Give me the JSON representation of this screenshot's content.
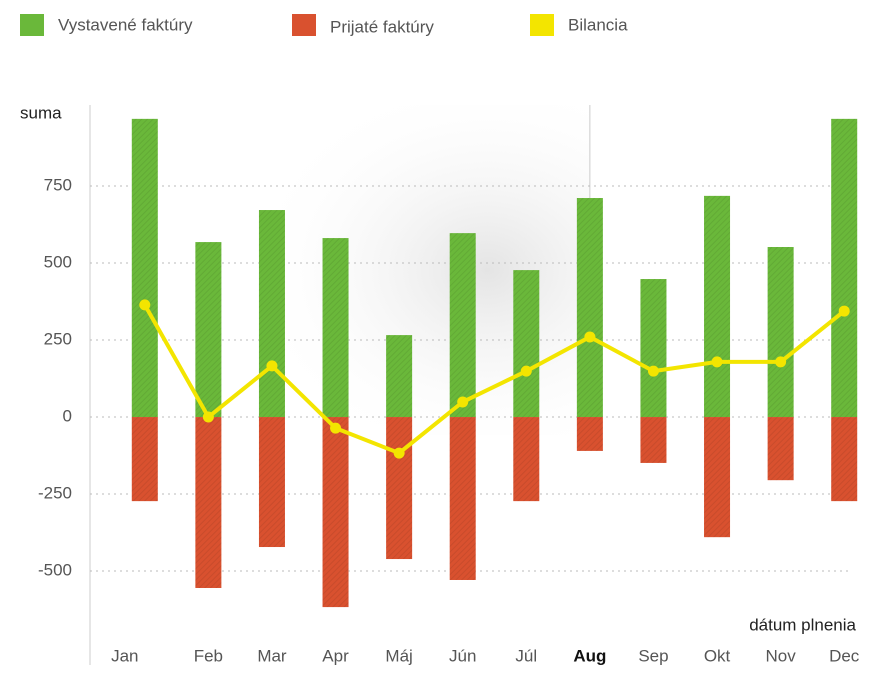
{
  "chart_data": {
    "type": "bar_line",
    "y_axis_label": "suma",
    "x_axis_label": "dátum plnenia",
    "categories": [
      "Jan",
      "Feb",
      "Mar",
      "Apr",
      "Máj",
      "Jún",
      "Júl",
      "Aug",
      "Sep",
      "Okt",
      "Nov",
      "Dec"
    ],
    "highlight_index": 7,
    "series": [
      {
        "name": "Vystavené faktúry",
        "color": "#6ab83a",
        "kind": "bar",
        "values": [
          968,
          568,
          672,
          581,
          266,
          597,
          477,
          711,
          448,
          718,
          552,
          968
        ]
      },
      {
        "name": "Prijaté faktúry",
        "color": "#d9512f",
        "kind": "bar",
        "values": [
          -273,
          -555,
          -422,
          -617,
          -461,
          -529,
          -273,
          -110,
          -149,
          -390,
          -205,
          -273
        ]
      },
      {
        "name": "Bilancia",
        "color": "#f3e500",
        "kind": "line",
        "values": [
          364,
          0,
          166,
          -36,
          -117,
          49,
          149,
          260,
          149,
          179,
          179,
          344
        ]
      }
    ],
    "ylim": [
      -805,
      1013
    ],
    "yticks": [
      -500,
      -250,
      0,
      250,
      500,
      750
    ],
    "grid": true
  }
}
